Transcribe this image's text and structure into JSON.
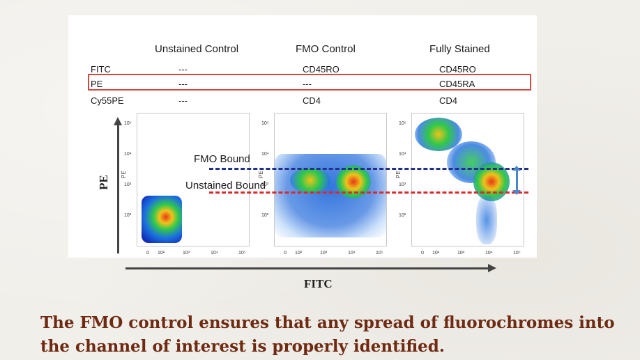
{
  "table": {
    "headers": [
      "Unstained Control",
      "FMO Control",
      "Fully Stained"
    ],
    "rows": [
      {
        "label": "FITC",
        "values": [
          "---",
          "CD45RO",
          "CD45RO"
        ]
      },
      {
        "label": "PE",
        "values": [
          "---",
          "---",
          "CD45RA"
        ]
      },
      {
        "label": "Cy55PE",
        "values": [
          "---",
          "CD4",
          "CD4"
        ]
      }
    ]
  },
  "plots": {
    "y_ticks": [
      "10⁵",
      "10⁴",
      "10³",
      "10²"
    ],
    "x_ticks": [
      "0",
      "10²",
      "10³",
      "10⁴",
      "10⁵"
    ],
    "y_label_small": "PE"
  },
  "gates": {
    "fmo_bound": "FMO Bound",
    "unstained_bound": "Unstained Bound",
    "fmo_color": "#23308a",
    "unstained_color": "#d62b2b"
  },
  "axes": {
    "y_label": "PE",
    "x_label": "FITC"
  },
  "caption": "The FMO control ensures that any spread of fluorochromes into the channel of interest is properly identified."
}
